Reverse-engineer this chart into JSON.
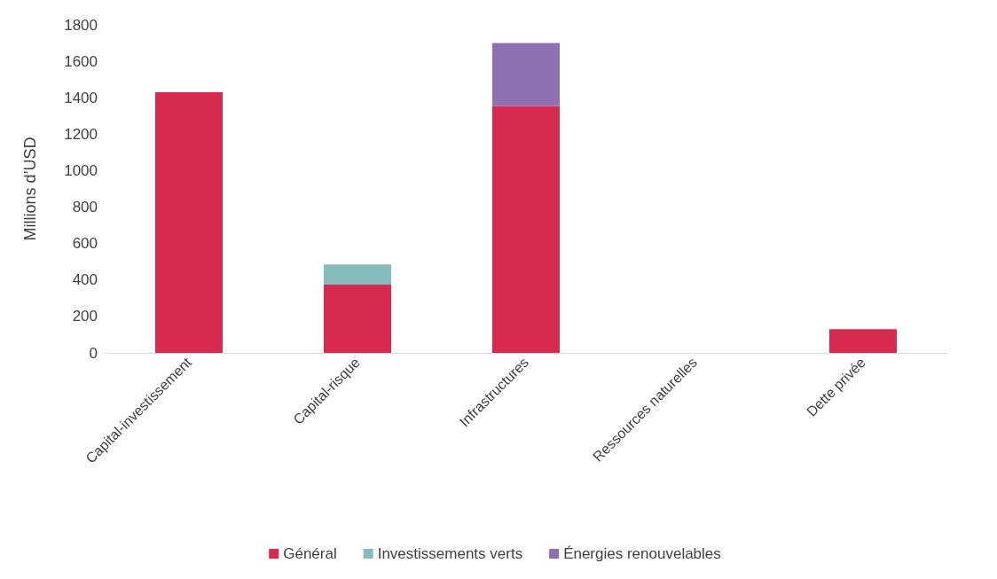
{
  "chart_data": {
    "type": "bar",
    "ylabel": "Millions d’USD",
    "categories": [
      "Capital-investissement",
      "Capital-risque",
      "Infrastructures",
      "Ressources naturelles",
      "Dette privée"
    ],
    "stacked": true,
    "series": [
      {
        "name": "Général",
        "color": "#d62a4e",
        "values": [
          1430,
          375,
          1355,
          0,
          130
        ]
      },
      {
        "name": "Investissements verts",
        "color": "#86bcbb",
        "values": [
          0,
          110,
          0,
          0,
          0
        ]
      },
      {
        "name": "Énergies renouvelables",
        "color": "#8e70b2",
        "values": [
          0,
          0,
          345,
          0,
          0
        ]
      }
    ],
    "ylim": [
      0,
      1800
    ],
    "yticks": [
      0,
      200,
      400,
      600,
      800,
      1000,
      1200,
      1400,
      1600,
      1800
    ],
    "grid": false,
    "legend": "bottom"
  }
}
